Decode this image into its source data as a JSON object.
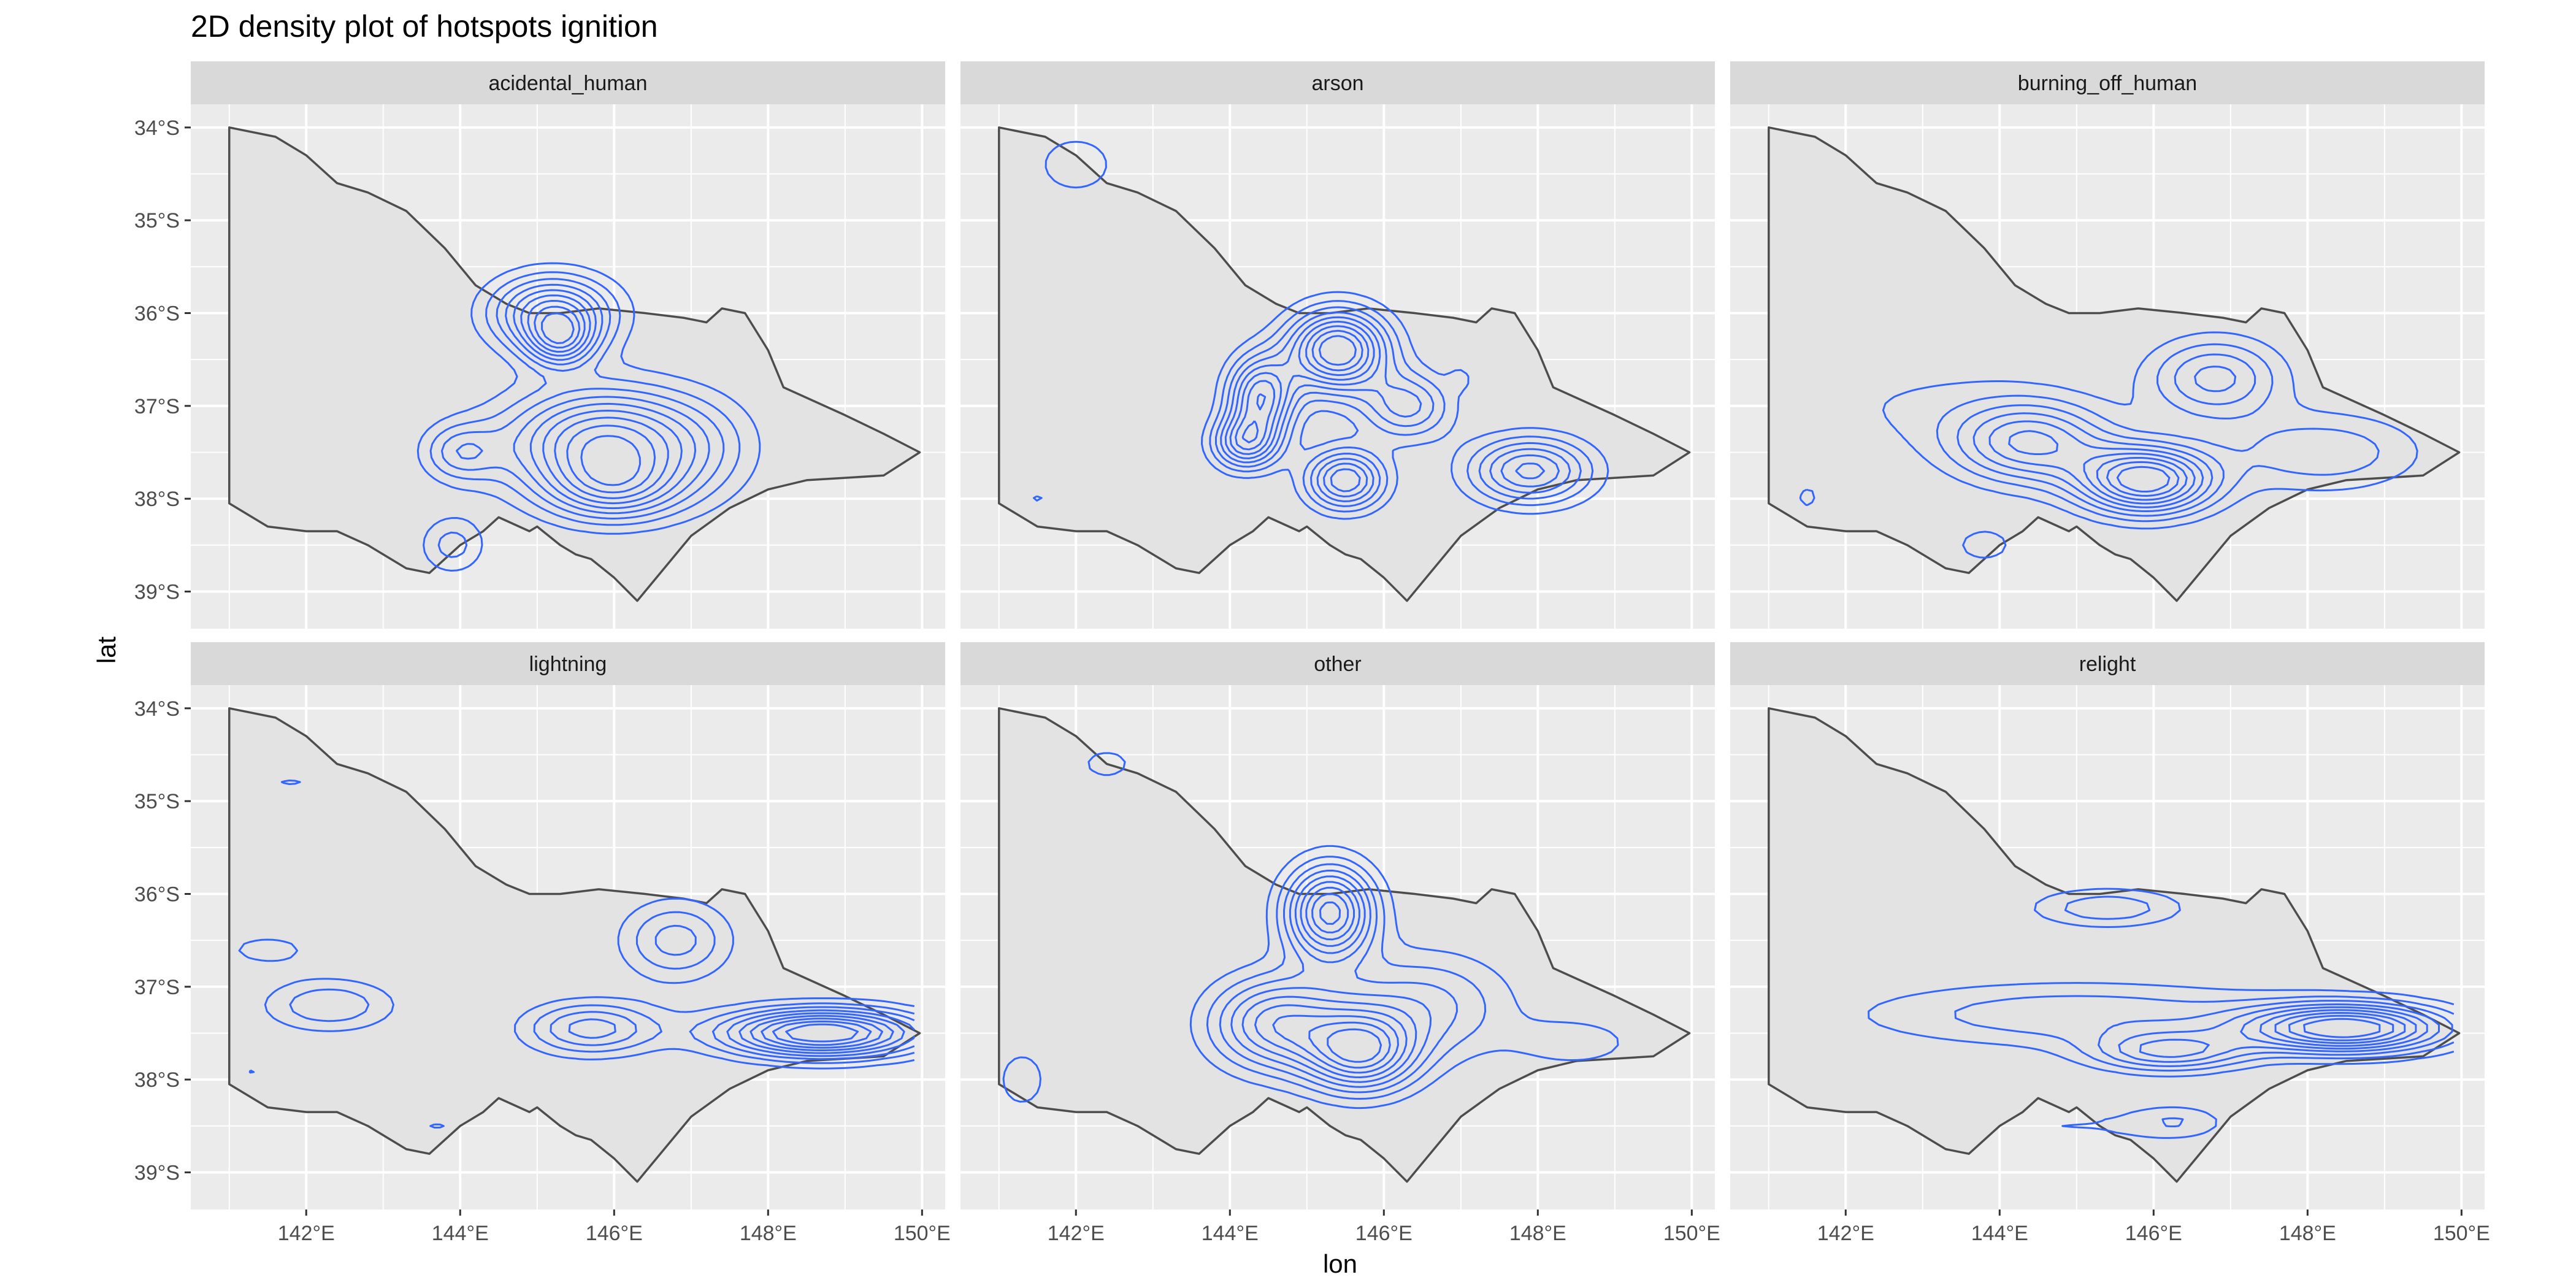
{
  "chart_data": {
    "type": "contour",
    "title": "2D density plot of hotspots ignition",
    "xlabel": "lon",
    "ylabel": "lat",
    "xlim": [
      140.5,
      150.3
    ],
    "ylim": [
      -39.4,
      -33.75
    ],
    "x_ticks": [
      142,
      144,
      146,
      148,
      150
    ],
    "x_tick_labels": [
      "142°E",
      "144°E",
      "146°E",
      "148°E",
      "150°E"
    ],
    "y_ticks": [
      -34,
      -35,
      -36,
      -37,
      -38,
      -39
    ],
    "y_tick_labels": [
      "34°S",
      "35°S",
      "36°S",
      "37°S",
      "38°S",
      "39°S"
    ],
    "grid": true,
    "layout": {
      "rows": 2,
      "cols": 3
    },
    "colors": {
      "panel": "#ebebeb",
      "grid": "#ffffff",
      "strip": "#d9d9d9",
      "contour": "#3366ff",
      "state_fill": "#e3e3e3",
      "state_border": "#4d4d4d"
    },
    "map_outline": [
      [
        141.0,
        -34.0
      ],
      [
        141.6,
        -34.1
      ],
      [
        142.0,
        -34.3
      ],
      [
        142.4,
        -34.6
      ],
      [
        142.8,
        -34.7
      ],
      [
        143.3,
        -34.9
      ],
      [
        143.8,
        -35.3
      ],
      [
        144.2,
        -35.7
      ],
      [
        144.6,
        -35.9
      ],
      [
        144.9,
        -36.0
      ],
      [
        145.3,
        -36.0
      ],
      [
        145.8,
        -35.95
      ],
      [
        146.4,
        -36.0
      ],
      [
        146.9,
        -36.05
      ],
      [
        147.2,
        -36.1
      ],
      [
        147.4,
        -35.95
      ],
      [
        147.7,
        -36.0
      ],
      [
        148.0,
        -36.4
      ],
      [
        148.2,
        -36.8
      ],
      [
        149.0,
        -37.1
      ],
      [
        149.5,
        -37.3
      ],
      [
        149.97,
        -37.5
      ],
      [
        149.5,
        -37.75
      ],
      [
        148.5,
        -37.8
      ],
      [
        148.0,
        -37.9
      ],
      [
        147.5,
        -38.1
      ],
      [
        147.0,
        -38.4
      ],
      [
        146.6,
        -38.8
      ],
      [
        146.3,
        -39.1
      ],
      [
        146.0,
        -38.85
      ],
      [
        145.7,
        -38.65
      ],
      [
        145.5,
        -38.6
      ],
      [
        145.3,
        -38.5
      ],
      [
        145.0,
        -38.3
      ],
      [
        144.9,
        -38.35
      ],
      [
        144.5,
        -38.2
      ],
      [
        144.3,
        -38.35
      ],
      [
        144.0,
        -38.5
      ],
      [
        143.6,
        -38.8
      ],
      [
        143.3,
        -38.75
      ],
      [
        142.8,
        -38.5
      ],
      [
        142.4,
        -38.35
      ],
      [
        142.0,
        -38.35
      ],
      [
        141.5,
        -38.3
      ],
      [
        141.0,
        -38.05
      ],
      [
        141.0,
        -34.0
      ]
    ],
    "facets": [
      {
        "label": "acidental_human",
        "density_peaks": [
          {
            "lon": 145.2,
            "lat": -36.0,
            "sx": 0.55,
            "sy": 0.28,
            "w": 1.0
          },
          {
            "lon": 145.3,
            "lat": -36.3,
            "sx": 0.3,
            "sy": 0.2,
            "w": 0.7
          },
          {
            "lon": 145.9,
            "lat": -37.4,
            "sx": 0.9,
            "sy": 0.4,
            "w": 1.2
          },
          {
            "lon": 146.0,
            "lat": -37.9,
            "sx": 0.6,
            "sy": 0.25,
            "w": 0.6
          },
          {
            "lon": 144.0,
            "lat": -37.5,
            "sx": 0.35,
            "sy": 0.22,
            "w": 0.45
          },
          {
            "lon": 142.5,
            "lat": -37.2,
            "sx": 0.35,
            "sy": 0.2,
            "w": 0.12
          },
          {
            "lon": 143.9,
            "lat": -38.5,
            "sx": 0.3,
            "sy": 0.22,
            "w": 0.35
          },
          {
            "lon": 142.1,
            "lat": -34.3,
            "sx": 0.5,
            "sy": 0.2,
            "w": 0.12
          },
          {
            "lon": 147.2,
            "lat": -37.5,
            "sx": 0.5,
            "sy": 0.4,
            "w": 0.15
          }
        ]
      },
      {
        "label": "arson",
        "density_peaks": [
          {
            "lon": 145.4,
            "lat": -36.4,
            "sx": 0.45,
            "sy": 0.3,
            "w": 0.8
          },
          {
            "lon": 144.4,
            "lat": -36.9,
            "sx": 0.3,
            "sy": 0.3,
            "w": 0.6
          },
          {
            "lon": 144.2,
            "lat": -37.4,
            "sx": 0.3,
            "sy": 0.2,
            "w": 0.5
          },
          {
            "lon": 145.5,
            "lat": -37.8,
            "sx": 0.35,
            "sy": 0.22,
            "w": 0.55
          },
          {
            "lon": 147.9,
            "lat": -37.7,
            "sx": 0.55,
            "sy": 0.25,
            "w": 0.5
          },
          {
            "lon": 146.3,
            "lat": -37.0,
            "sx": 0.4,
            "sy": 0.25,
            "w": 0.35
          },
          {
            "lon": 142.0,
            "lat": -34.4,
            "sx": 0.4,
            "sy": 0.25,
            "w": 0.15
          },
          {
            "lon": 141.5,
            "lat": -38.0,
            "sx": 0.15,
            "sy": 0.1,
            "w": 0.1
          },
          {
            "lon": 147.0,
            "lat": -36.7,
            "sx": 0.12,
            "sy": 0.1,
            "w": 0.1
          }
        ]
      },
      {
        "label": "burning_off_human",
        "density_peaks": [
          {
            "lon": 145.9,
            "lat": -37.8,
            "sx": 0.6,
            "sy": 0.25,
            "w": 1.0
          },
          {
            "lon": 144.4,
            "lat": -37.4,
            "sx": 0.7,
            "sy": 0.3,
            "w": 0.6
          },
          {
            "lon": 146.8,
            "lat": -36.7,
            "sx": 0.6,
            "sy": 0.3,
            "w": 0.45
          },
          {
            "lon": 148.2,
            "lat": -37.5,
            "sx": 0.9,
            "sy": 0.3,
            "w": 0.3
          },
          {
            "lon": 143.0,
            "lat": -37.0,
            "sx": 1.4,
            "sy": 0.4,
            "w": 0.12
          },
          {
            "lon": 141.5,
            "lat": -38.0,
            "sx": 0.35,
            "sy": 0.3,
            "w": 0.12
          },
          {
            "lon": 143.8,
            "lat": -38.5,
            "sx": 0.4,
            "sy": 0.2,
            "w": 0.15
          }
        ]
      },
      {
        "label": "lightning",
        "density_peaks": [
          {
            "lon": 148.7,
            "lat": -37.5,
            "sx": 0.9,
            "sy": 0.18,
            "w": 1.0
          },
          {
            "lon": 145.7,
            "lat": -37.45,
            "sx": 0.6,
            "sy": 0.2,
            "w": 0.45
          },
          {
            "lon": 146.8,
            "lat": -36.5,
            "sx": 0.5,
            "sy": 0.3,
            "w": 0.35
          },
          {
            "lon": 142.3,
            "lat": -37.2,
            "sx": 0.6,
            "sy": 0.2,
            "w": 0.3
          },
          {
            "lon": 141.8,
            "lat": -34.8,
            "sx": 0.4,
            "sy": 0.12,
            "w": 0.12
          },
          {
            "lon": 141.6,
            "lat": -35.7,
            "sx": 0.3,
            "sy": 0.1,
            "w": 0.12
          },
          {
            "lon": 141.5,
            "lat": -36.6,
            "sx": 0.5,
            "sy": 0.15,
            "w": 0.15
          },
          {
            "lon": 141.3,
            "lat": -37.9,
            "sx": 0.15,
            "sy": 0.12,
            "w": 0.12
          },
          {
            "lon": 143.7,
            "lat": -38.5,
            "sx": 0.3,
            "sy": 0.12,
            "w": 0.12
          }
        ]
      },
      {
        "label": "other",
        "density_peaks": [
          {
            "lon": 145.3,
            "lat": -36.2,
            "sx": 0.4,
            "sy": 0.35,
            "w": 0.8
          },
          {
            "lon": 145.7,
            "lat": -37.7,
            "sx": 0.5,
            "sy": 0.3,
            "w": 0.7
          },
          {
            "lon": 144.6,
            "lat": -37.4,
            "sx": 0.6,
            "sy": 0.35,
            "w": 0.55
          },
          {
            "lon": 146.5,
            "lat": -37.2,
            "sx": 0.8,
            "sy": 0.4,
            "w": 0.3
          },
          {
            "lon": 142.4,
            "lat": -34.6,
            "sx": 0.4,
            "sy": 0.2,
            "w": 0.12
          },
          {
            "lon": 141.3,
            "lat": -38.0,
            "sx": 0.4,
            "sy": 0.4,
            "w": 0.12
          },
          {
            "lon": 148.5,
            "lat": -37.6,
            "sx": 0.6,
            "sy": 0.2,
            "w": 0.15
          }
        ]
      },
      {
        "label": "relight",
        "density_peaks": [
          {
            "lon": 148.5,
            "lat": -37.45,
            "sx": 0.9,
            "sy": 0.18,
            "w": 1.0
          },
          {
            "lon": 146.2,
            "lat": -37.7,
            "sx": 0.7,
            "sy": 0.15,
            "w": 0.5
          },
          {
            "lon": 145.4,
            "lat": -36.15,
            "sx": 0.7,
            "sy": 0.15,
            "w": 0.3
          },
          {
            "lon": 145.0,
            "lat": -37.3,
            "sx": 2.0,
            "sy": 0.25,
            "w": 0.3
          },
          {
            "lon": 146.3,
            "lat": -38.45,
            "sx": 0.4,
            "sy": 0.12,
            "w": 0.15
          },
          {
            "lon": 145.0,
            "lat": -38.5,
            "sx": 1.5,
            "sy": 0.2,
            "w": 0.12
          }
        ]
      }
    ]
  }
}
